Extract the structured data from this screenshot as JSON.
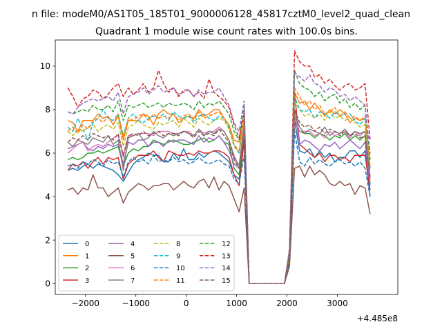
{
  "figure": {
    "suptitle": "n file: modeM0/AS1T05_185T01_9000006128_45817cztM0_level2_quad_clean",
    "offset_label": "+4.485e8"
  },
  "chart_data": {
    "type": "line",
    "title": "Quadrant 1 module wise count rates with 100.0s bins.",
    "xlabel": "",
    "ylabel": "",
    "x_offset": 448500000,
    "xlim": [
      -2600,
      4200
    ],
    "ylim": [
      -0.5,
      11.2
    ],
    "x_ticks": [
      -2000,
      -1000,
      0,
      1000,
      2000,
      3000
    ],
    "x_tick_labels": [
      "−2000",
      "−1000",
      "0",
      "1000",
      "2000",
      "3000"
    ],
    "y_ticks": [
      0,
      2,
      4,
      6,
      8,
      10
    ],
    "y_tick_labels": [
      "0",
      "2",
      "4",
      "6",
      "8",
      "10"
    ],
    "grid": false,
    "legend_position": "lower-left",
    "legend_columns": 4,
    "x": [
      -2350,
      -2250,
      -2150,
      -2050,
      -1950,
      -1850,
      -1750,
      -1650,
      -1550,
      -1450,
      -1350,
      -1250,
      -1150,
      -1050,
      -950,
      -850,
      -750,
      -650,
      -550,
      -450,
      -350,
      -250,
      -150,
      -50,
      50,
      150,
      250,
      350,
      450,
      550,
      650,
      750,
      850,
      950,
      1050,
      1150,
      1250,
      1350,
      1450,
      1550,
      1650,
      1750,
      1850,
      1950,
      2050,
      2150,
      2250,
      2350,
      2450,
      2550,
      2650,
      2750,
      2850,
      2950,
      3050,
      3150,
      3250,
      3350,
      3450,
      3550,
      3650
    ],
    "series": [
      {
        "name": "0",
        "color": "#1f77b4",
        "style": "solid",
        "values": [
          5.2,
          5.3,
          5.2,
          5.4,
          5.5,
          5.3,
          5.5,
          5.4,
          5.3,
          5.2,
          5.0,
          4.7,
          5.1,
          5.5,
          5.7,
          5.8,
          6.0,
          5.9,
          5.9,
          5.6,
          5.6,
          6.0,
          5.7,
          6.2,
          5.7,
          5.7,
          6.0,
          5.8,
          6.0,
          6.1,
          6.0,
          5.8,
          5.6,
          5.0,
          4.8,
          6.5,
          0,
          0,
          0,
          0,
          0,
          0,
          0,
          0,
          1.0,
          7.5,
          6.1,
          6.0,
          6.2,
          5.8,
          6.1,
          5.8,
          6.0,
          5.6,
          5.8,
          5.8,
          6.1,
          6.1,
          5.8,
          6.1,
          4.0
        ]
      },
      {
        "name": "1",
        "color": "#ff7f0e",
        "style": "solid",
        "values": [
          7.5,
          7.4,
          7.0,
          7.5,
          7.5,
          7.5,
          7.8,
          7.6,
          7.7,
          7.3,
          7.7,
          6.6,
          7.5,
          7.5,
          7.5,
          7.8,
          7.7,
          7.3,
          7.8,
          8.0,
          7.8,
          7.8,
          7.4,
          7.6,
          7.7,
          7.6,
          8.0,
          7.7,
          7.8,
          8.0,
          8.0,
          7.6,
          7.3,
          6.6,
          6.5,
          7.5,
          0,
          0,
          0,
          0,
          0,
          0,
          0,
          0,
          1.0,
          8.8,
          8.3,
          8.4,
          8.0,
          8.3,
          8.0,
          7.7,
          8.0,
          7.8,
          8.0,
          7.8,
          7.4,
          7.6,
          7.5,
          7.6,
          5.3
        ]
      },
      {
        "name": "2",
        "color": "#2ca02c",
        "style": "solid",
        "values": [
          5.7,
          5.8,
          5.7,
          5.8,
          6.0,
          6.0,
          6.1,
          6.0,
          6.1,
          6.2,
          6.3,
          5.4,
          6.0,
          6.2,
          6.1,
          6.3,
          6.3,
          6.6,
          6.5,
          6.4,
          6.5,
          6.6,
          6.5,
          6.4,
          6.4,
          6.5,
          6.6,
          6.7,
          6.5,
          6.6,
          6.8,
          6.5,
          6.4,
          5.3,
          5.0,
          6.8,
          0,
          0,
          0,
          0,
          0,
          0,
          0,
          0,
          1.2,
          7.5,
          7.0,
          6.9,
          6.9,
          6.7,
          6.9,
          6.8,
          6.6,
          6.8,
          6.7,
          6.9,
          6.6,
          6.8,
          6.6,
          6.8,
          4.6
        ]
      },
      {
        "name": "3",
        "color": "#d62728",
        "style": "solid",
        "values": [
          5.2,
          5.5,
          5.4,
          5.6,
          5.3,
          5.6,
          5.8,
          5.5,
          5.8,
          5.7,
          5.8,
          4.8,
          5.5,
          5.7,
          5.9,
          5.9,
          5.9,
          6.1,
          5.8,
          5.6,
          6.1,
          6.0,
          5.9,
          5.9,
          6.0,
          5.9,
          6.1,
          6.0,
          6.0,
          6.1,
          6.1,
          6.0,
          5.8,
          5.0,
          4.5,
          6.6,
          0,
          0,
          0,
          0,
          0,
          0,
          0,
          0,
          1.0,
          8.8,
          6.4,
          6.2,
          6.0,
          5.8,
          6.0,
          5.6,
          5.9,
          5.9,
          5.7,
          5.8,
          5.6,
          5.9,
          5.9,
          5.9,
          4.3
        ]
      },
      {
        "name": "4",
        "color": "#9467bd",
        "style": "solid",
        "values": [
          6.2,
          6.3,
          6.4,
          6.5,
          6.2,
          6.1,
          6.3,
          6.2,
          6.4,
          6.3,
          6.4,
          5.5,
          6.5,
          6.4,
          6.6,
          6.6,
          6.3,
          6.5,
          6.5,
          6.3,
          6.6,
          6.5,
          6.6,
          6.6,
          6.5,
          6.4,
          6.8,
          6.5,
          6.7,
          6.6,
          6.8,
          6.5,
          6.1,
          5.5,
          5.3,
          7.2,
          0,
          0,
          0,
          0,
          0,
          0,
          0,
          0,
          1.0,
          8.0,
          6.4,
          6.6,
          6.5,
          6.3,
          6.1,
          6.4,
          6.3,
          6.5,
          6.2,
          6.4,
          6.6,
          6.4,
          6.2,
          6.5,
          4.5
        ]
      },
      {
        "name": "5",
        "color": "#8c564b",
        "style": "solid",
        "values": [
          4.3,
          4.4,
          4.1,
          4.4,
          4.3,
          5.0,
          4.4,
          4.4,
          4.0,
          4.2,
          4.4,
          3.7,
          4.2,
          4.4,
          4.6,
          4.5,
          4.3,
          4.5,
          4.5,
          4.6,
          4.6,
          4.3,
          4.5,
          4.7,
          4.5,
          4.4,
          4.7,
          4.8,
          4.4,
          4.9,
          4.3,
          4.7,
          4.5,
          3.9,
          3.3,
          4.4,
          0,
          0,
          0,
          0,
          0,
          0,
          0,
          0,
          0.8,
          5.3,
          5.4,
          4.9,
          5.4,
          5.0,
          5.2,
          5.0,
          4.6,
          4.5,
          4.7,
          4.5,
          4.6,
          4.1,
          4.5,
          4.4,
          3.2
        ]
      },
      {
        "name": "6",
        "color": "#e377c2",
        "style": "solid",
        "values": [
          6.0,
          6.2,
          6.4,
          6.5,
          6.1,
          6.3,
          6.4,
          6.3,
          6.5,
          6.7,
          6.8,
          5.8,
          6.8,
          6.8,
          6.9,
          6.9,
          6.9,
          6.8,
          7.0,
          7.0,
          7.0,
          6.9,
          6.9,
          7.0,
          7.0,
          6.8,
          7.1,
          6.9,
          7.0,
          7.0,
          7.2,
          7.0,
          6.6,
          5.9,
          5.4,
          7.4,
          0,
          0,
          0,
          0,
          0,
          0,
          0,
          0,
          1.1,
          7.6,
          7.0,
          7.0,
          7.0,
          6.8,
          6.9,
          6.7,
          7.0,
          6.8,
          6.9,
          7.0,
          6.7,
          7.0,
          6.8,
          7.0,
          4.8
        ]
      },
      {
        "name": "7",
        "color": "#7f7f7f",
        "style": "solid",
        "values": [
          6.5,
          6.3,
          6.6,
          6.5,
          6.4,
          6.7,
          6.6,
          6.5,
          6.8,
          6.4,
          6.6,
          5.2,
          6.7,
          6.8,
          6.9,
          6.6,
          6.7,
          7.0,
          6.8,
          6.7,
          6.9,
          6.8,
          6.9,
          7.0,
          6.9,
          6.8,
          7.1,
          6.8,
          7.0,
          6.9,
          7.1,
          7.0,
          6.6,
          5.8,
          5.4,
          7.2,
          0,
          0,
          0,
          0,
          0,
          0,
          0,
          0,
          1.1,
          7.8,
          7.2,
          6.9,
          7.1,
          7.0,
          6.9,
          7.2,
          6.8,
          7.0,
          6.9,
          7.1,
          6.8,
          7.0,
          6.9,
          7.0,
          4.9
        ]
      },
      {
        "name": "8",
        "color": "#bcbd22",
        "style": "dashed",
        "values": [
          7.0,
          6.8,
          7.1,
          7.0,
          7.2,
          7.3,
          7.0,
          7.2,
          7.3,
          7.1,
          7.4,
          6.3,
          7.2,
          7.3,
          7.5,
          7.3,
          7.2,
          7.1,
          7.4,
          7.3,
          7.4,
          7.5,
          7.2,
          7.6,
          7.4,
          7.2,
          7.6,
          7.4,
          7.3,
          7.5,
          7.6,
          7.5,
          7.1,
          6.3,
          6.0,
          7.7,
          0,
          0,
          0,
          0,
          0,
          0,
          0,
          0,
          1.2,
          8.4,
          8.0,
          7.7,
          7.8,
          7.6,
          7.8,
          7.5,
          7.9,
          7.6,
          7.7,
          7.5,
          7.6,
          7.4,
          7.2,
          7.3,
          5.2
        ]
      },
      {
        "name": "9",
        "color": "#17becf",
        "style": "dashed",
        "values": [
          7.2,
          7.0,
          7.6,
          7.1,
          6.6,
          7.4,
          7.6,
          8.0,
          7.6,
          7.5,
          7.8,
          6.8,
          7.6,
          7.8,
          7.5,
          7.4,
          7.6,
          7.7,
          7.6,
          7.8,
          7.5,
          7.9,
          7.7,
          7.6,
          7.7,
          7.4,
          7.7,
          7.8,
          7.6,
          7.5,
          7.7,
          7.6,
          7.2,
          6.4,
          6.0,
          7.6,
          0,
          0,
          0,
          0,
          0,
          0,
          0,
          0,
          1.3,
          8.6,
          8.0,
          7.9,
          8.0,
          7.6,
          7.9,
          7.8,
          7.6,
          7.9,
          7.7,
          7.8,
          7.8,
          7.5,
          7.3,
          7.6,
          5.3
        ]
      },
      {
        "name": "10",
        "color": "#1f77b4",
        "style": "dashed",
        "values": [
          5.4,
          5.5,
          5.3,
          5.6,
          5.5,
          5.7,
          5.6,
          5.4,
          5.7,
          5.5,
          5.6,
          4.9,
          5.6,
          5.8,
          5.6,
          5.7,
          5.5,
          5.9,
          5.6,
          5.7,
          5.6,
          5.8,
          5.6,
          5.7,
          5.5,
          5.6,
          5.8,
          5.6,
          5.5,
          5.6,
          5.7,
          5.5,
          5.4,
          4.8,
          4.6,
          5.9,
          0,
          0,
          0,
          0,
          0,
          0,
          0,
          0,
          1.0,
          7.0,
          5.6,
          5.4,
          5.8,
          5.5,
          5.7,
          5.5,
          5.4,
          5.6,
          5.7,
          5.5,
          5.6,
          5.4,
          5.6,
          5.3,
          4.0
        ]
      },
      {
        "name": "11",
        "color": "#ff7f0e",
        "style": "dashed",
        "values": [
          7.0,
          7.2,
          6.9,
          7.3,
          7.1,
          7.5,
          7.6,
          7.4,
          7.7,
          7.3,
          7.8,
          6.7,
          7.6,
          7.5,
          7.7,
          7.8,
          7.5,
          7.8,
          7.6,
          7.7,
          7.6,
          7.8,
          7.5,
          7.7,
          7.8,
          7.5,
          7.9,
          7.6,
          7.7,
          7.8,
          7.9,
          7.6,
          7.3,
          6.4,
          6.1,
          7.6,
          0,
          0,
          0,
          0,
          0,
          0,
          0,
          0,
          1.2,
          9.0,
          8.6,
          8.2,
          8.4,
          8.0,
          8.2,
          7.8,
          7.9,
          8.1,
          7.7,
          7.9,
          7.6,
          7.7,
          7.5,
          7.7,
          5.4
        ]
      },
      {
        "name": "12",
        "color": "#2ca02c",
        "style": "dashed",
        "values": [
          7.9,
          7.8,
          7.9,
          8.0,
          7.9,
          8.2,
          8.0,
          8.0,
          8.2,
          7.9,
          8.4,
          7.5,
          8.2,
          8.1,
          8.2,
          8.3,
          8.1,
          8.2,
          8.3,
          8.1,
          8.3,
          8.2,
          8.2,
          8.3,
          8.2,
          8.0,
          8.4,
          8.1,
          8.3,
          8.2,
          8.4,
          8.1,
          7.8,
          7.0,
          6.6,
          8.2,
          0,
          0,
          0,
          0,
          0,
          0,
          0,
          0,
          1.5,
          9.8,
          9.2,
          9.0,
          8.9,
          8.6,
          8.8,
          8.4,
          8.6,
          8.7,
          8.3,
          8.5,
          8.1,
          8.3,
          8.0,
          8.2,
          5.7
        ]
      },
      {
        "name": "13",
        "color": "#d62728",
        "style": "dashed",
        "values": [
          9.0,
          8.6,
          8.1,
          8.5,
          8.6,
          8.9,
          8.8,
          8.5,
          8.7,
          9.0,
          9.2,
          8.6,
          9.0,
          8.7,
          8.9,
          9.2,
          8.8,
          9.0,
          9.8,
          9.2,
          8.8,
          9.0,
          8.6,
          8.9,
          8.9,
          8.6,
          8.8,
          8.5,
          9.4,
          8.8,
          8.6,
          8.4,
          8.1,
          7.3,
          6.7,
          7.8,
          0,
          0,
          0,
          0,
          0,
          0,
          0,
          0,
          1.6,
          10.7,
          10.2,
          10.0,
          10.0,
          9.5,
          9.6,
          9.2,
          9.4,
          9.1,
          8.9,
          9.1,
          9.2,
          8.9,
          9.0,
          9.2,
          6.6
        ]
      },
      {
        "name": "14",
        "color": "#9467bd",
        "style": "dashed",
        "values": [
          7.9,
          7.8,
          8.1,
          8.3,
          8.4,
          8.5,
          8.4,
          8.5,
          8.6,
          8.4,
          8.8,
          7.8,
          8.6,
          8.7,
          8.8,
          9.0,
          8.7,
          8.9,
          9.1,
          8.8,
          8.9,
          9.0,
          8.7,
          8.8,
          8.9,
          8.6,
          8.9,
          8.7,
          8.8,
          8.8,
          9.0,
          8.6,
          8.2,
          7.4,
          7.0,
          8.4,
          0,
          0,
          0,
          0,
          0,
          0,
          0,
          0,
          1.6,
          9.7,
          9.5,
          9.3,
          9.6,
          9.2,
          9.1,
          8.8,
          9.0,
          8.9,
          8.6,
          8.7,
          8.4,
          8.6,
          8.4,
          8.2,
          6.0
        ]
      },
      {
        "name": "15",
        "color": "#8c564b",
        "style": "dashed",
        "values": [
          6.5,
          6.7,
          6.6,
          6.8,
          6.6,
          6.9,
          6.8,
          6.7,
          6.8,
          6.6,
          6.9,
          5.9,
          6.8,
          6.9,
          6.8,
          7.0,
          6.8,
          6.9,
          7.0,
          6.8,
          6.9,
          6.9,
          6.8,
          7.0,
          6.9,
          6.7,
          7.0,
          6.8,
          6.9,
          6.8,
          7.1,
          6.8,
          6.5,
          5.7,
          5.3,
          6.8,
          0,
          0,
          0,
          0,
          0,
          0,
          0,
          0,
          1.2,
          8.0,
          7.4,
          7.2,
          7.3,
          7.0,
          7.2,
          6.9,
          7.1,
          7.0,
          6.8,
          7.0,
          6.8,
          6.9,
          6.7,
          6.8,
          4.9
        ]
      }
    ]
  }
}
